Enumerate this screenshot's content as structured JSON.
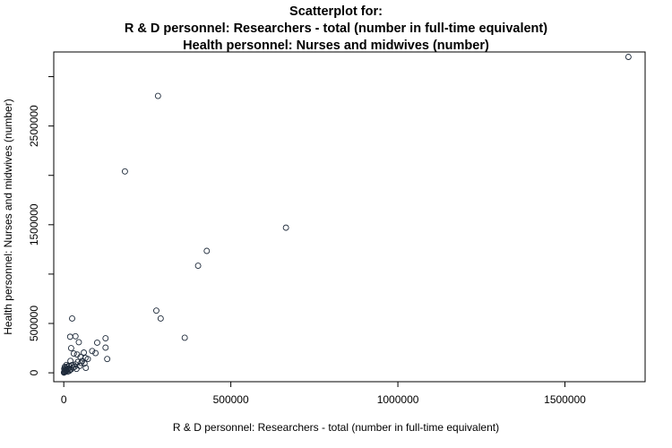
{
  "chart_data": {
    "type": "scatter",
    "title_lines": [
      "Scatterplot for:",
      "R & D personnel: Researchers - total (number in full-time equivalent)",
      "Health personnel: Nurses and midwives (number)"
    ],
    "xlabel": "R & D personnel: Researchers - total (number in full-time equivalent)",
    "ylabel": "Health personnel: Nurses and midwives (number)",
    "xlim": [
      -30000,
      1740000
    ],
    "ylim": [
      -90000,
      3250000
    ],
    "x_ticks": [
      0,
      500000,
      1000000,
      1500000
    ],
    "x_tick_labels": [
      "0",
      "500000",
      "1000000",
      "1500000"
    ],
    "y_ticks": [
      0,
      500000,
      1000000,
      1500000,
      2000000,
      2500000,
      3000000
    ],
    "y_tick_labels": [
      "0",
      "500000",
      "",
      "1500000",
      "",
      "2500000",
      ""
    ],
    "grid": false,
    "points": [
      {
        "x": 1690000,
        "y": 3200000
      },
      {
        "x": 282000,
        "y": 2805000
      },
      {
        "x": 183000,
        "y": 2040000
      },
      {
        "x": 665000,
        "y": 1470000
      },
      {
        "x": 428000,
        "y": 1235000
      },
      {
        "x": 402000,
        "y": 1085000
      },
      {
        "x": 277000,
        "y": 630000
      },
      {
        "x": 290000,
        "y": 550000
      },
      {
        "x": 362000,
        "y": 355000
      },
      {
        "x": 25000,
        "y": 550000
      },
      {
        "x": 19000,
        "y": 365000
      },
      {
        "x": 35000,
        "y": 370000
      },
      {
        "x": 125000,
        "y": 350000
      },
      {
        "x": 45000,
        "y": 310000
      },
      {
        "x": 100000,
        "y": 305000
      },
      {
        "x": 22000,
        "y": 250000
      },
      {
        "x": 125000,
        "y": 255000
      },
      {
        "x": 85000,
        "y": 220000
      },
      {
        "x": 60000,
        "y": 205000
      },
      {
        "x": 95000,
        "y": 200000
      },
      {
        "x": 30000,
        "y": 195000
      },
      {
        "x": 40000,
        "y": 185000
      },
      {
        "x": 130000,
        "y": 140000
      },
      {
        "x": 50000,
        "y": 160000
      },
      {
        "x": 65000,
        "y": 150000
      },
      {
        "x": 72000,
        "y": 140000
      },
      {
        "x": 55000,
        "y": 120000
      },
      {
        "x": 20000,
        "y": 120000
      },
      {
        "x": 42000,
        "y": 110000
      },
      {
        "x": 62000,
        "y": 95000
      },
      {
        "x": 35000,
        "y": 85000
      },
      {
        "x": 25000,
        "y": 80000
      },
      {
        "x": 48000,
        "y": 70000
      },
      {
        "x": 66000,
        "y": 50000
      },
      {
        "x": 15000,
        "y": 70000
      },
      {
        "x": 10000,
        "y": 60000
      },
      {
        "x": 8000,
        "y": 80000
      },
      {
        "x": 5000,
        "y": 50000
      },
      {
        "x": 3000,
        "y": 30000
      },
      {
        "x": 12000,
        "y": 40000
      },
      {
        "x": 18000,
        "y": 30000
      },
      {
        "x": 28000,
        "y": 55000
      },
      {
        "x": 6000,
        "y": 20000
      },
      {
        "x": 2000,
        "y": 10000
      },
      {
        "x": 1000,
        "y": 5000
      },
      {
        "x": 4000,
        "y": 15000
      },
      {
        "x": 7000,
        "y": 35000
      },
      {
        "x": 9000,
        "y": 25000
      },
      {
        "x": 14000,
        "y": 45000
      },
      {
        "x": 22000,
        "y": 35000
      },
      {
        "x": 32000,
        "y": 60000
      },
      {
        "x": 3000,
        "y": 60000
      },
      {
        "x": 1500,
        "y": 40000
      },
      {
        "x": 500,
        "y": 2000
      },
      {
        "x": 2500,
        "y": 8000
      },
      {
        "x": 11000,
        "y": 12000
      },
      {
        "x": 16000,
        "y": 18000
      },
      {
        "x": 38000,
        "y": 40000
      },
      {
        "x": 52000,
        "y": 100000
      }
    ]
  }
}
